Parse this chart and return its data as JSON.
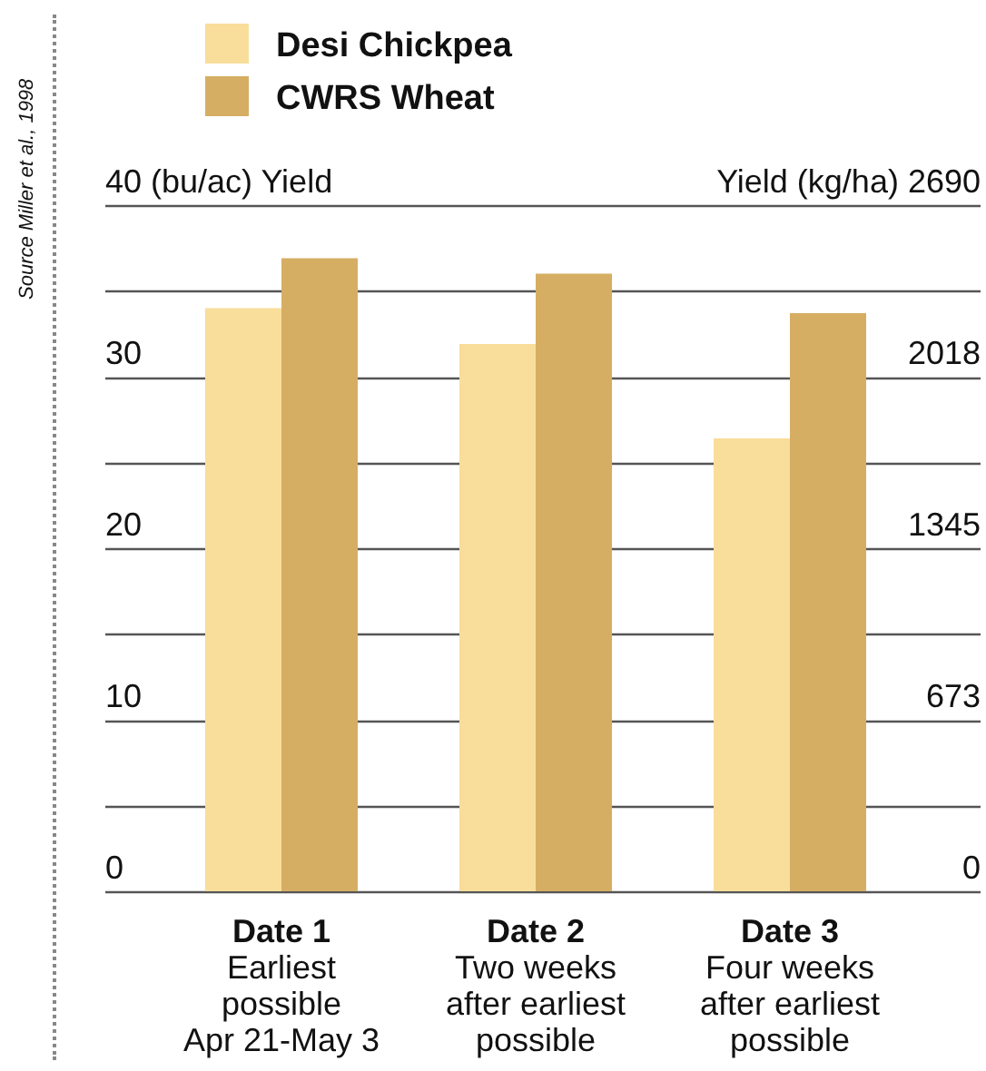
{
  "chart_data": {
    "type": "bar",
    "categories": [
      [
        "Date 1",
        "Earliest",
        "possible",
        "Apr 21-May 3"
      ],
      [
        "Date 2",
        "Two weeks",
        "after earliest",
        "possible"
      ],
      [
        "Date 3",
        "Four weeks",
        "after earliest",
        "possible"
      ]
    ],
    "series": [
      {
        "name": "Desi Chickpea",
        "color": "#f9dd9b",
        "values": [
          34.0,
          31.9,
          26.4
        ]
      },
      {
        "name": "CWRS Wheat",
        "color": "#d5ae63",
        "values": [
          36.9,
          36.0,
          33.7
        ]
      }
    ],
    "ylabel": "(bu/ac) Yield",
    "y2label": "Yield (kg/ha)",
    "ylim": [
      0,
      40
    ],
    "yticks": [
      0,
      {
        "value": 5,
        "label": null
      },
      10,
      {
        "value": 15,
        "label": null
      },
      20,
      {
        "value": 25,
        "label": null
      },
      30,
      {
        "value": 35,
        "label": null
      },
      40
    ],
    "y2lim": [
      0,
      2690
    ],
    "y2ticks": [
      0,
      673,
      1345,
      2018,
      2690
    ],
    "grid": "y",
    "legend": "top",
    "annotations": [
      "Source Miller et al., 1998"
    ]
  }
}
